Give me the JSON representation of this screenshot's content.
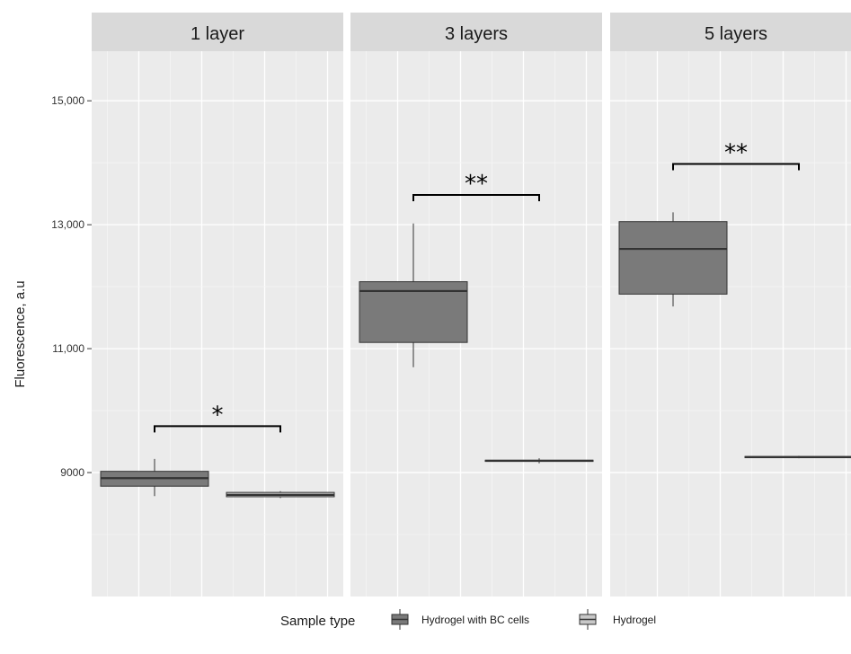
{
  "chart_data": {
    "type": "boxplot",
    "ylabel": "Fluorescence, a.u",
    "ylim": [
      7000,
      15800
    ],
    "yticks": [
      9000,
      11000,
      13000,
      15000
    ],
    "ytick_labels": [
      "9000",
      "11,000",
      "13,000",
      "15,000"
    ],
    "grid": true,
    "legend": {
      "position": "bottom",
      "title": "Sample type",
      "entries": [
        "Hydrogel with BC cells",
        "Hydrogel"
      ]
    },
    "series_colors": {
      "Hydrogel with BC cells": "#7a7a7a",
      "Hydrogel": "#c8c8c8"
    },
    "colors": {
      "panel_bg": "#ebebeb",
      "strip_bg": "#d9d9d9",
      "grid_major": "#ffffff",
      "grid_minor": "#f5f5f5",
      "median": "#333333",
      "box_border": "#333333"
    },
    "facets": [
      {
        "label": "1 layer",
        "boxes": [
          {
            "series": "Hydrogel with BC cells",
            "min": 8620,
            "q1": 8780,
            "median": 8910,
            "q3": 9020,
            "max": 9220
          },
          {
            "series": "Hydrogel",
            "min": 8590,
            "q1": 8610,
            "median": 8640,
            "q3": 8680,
            "max": 8700
          }
        ],
        "significance": {
          "label": "*",
          "y": 9750
        }
      },
      {
        "label": "3 layers",
        "boxes": [
          {
            "series": "Hydrogel with BC cells",
            "min": 10700,
            "q1": 11100,
            "median": 11930,
            "q3": 12080,
            "max": 13020
          },
          {
            "series": "Hydrogel",
            "min": 9150,
            "q1": 9180,
            "median": 9190,
            "q3": 9200,
            "max": 9230
          }
        ],
        "significance": {
          "label": "**",
          "y": 13480
        }
      },
      {
        "label": "5 layers",
        "boxes": [
          {
            "series": "Hydrogel with BC cells",
            "min": 11680,
            "q1": 11880,
            "median": 12610,
            "q3": 13050,
            "max": 13200
          },
          {
            "series": "Hydrogel",
            "min": 9230,
            "q1": 9240,
            "median": 9250,
            "q3": 9260,
            "max": 9270
          }
        ],
        "significance": {
          "label": "**",
          "y": 13980
        }
      }
    ]
  }
}
